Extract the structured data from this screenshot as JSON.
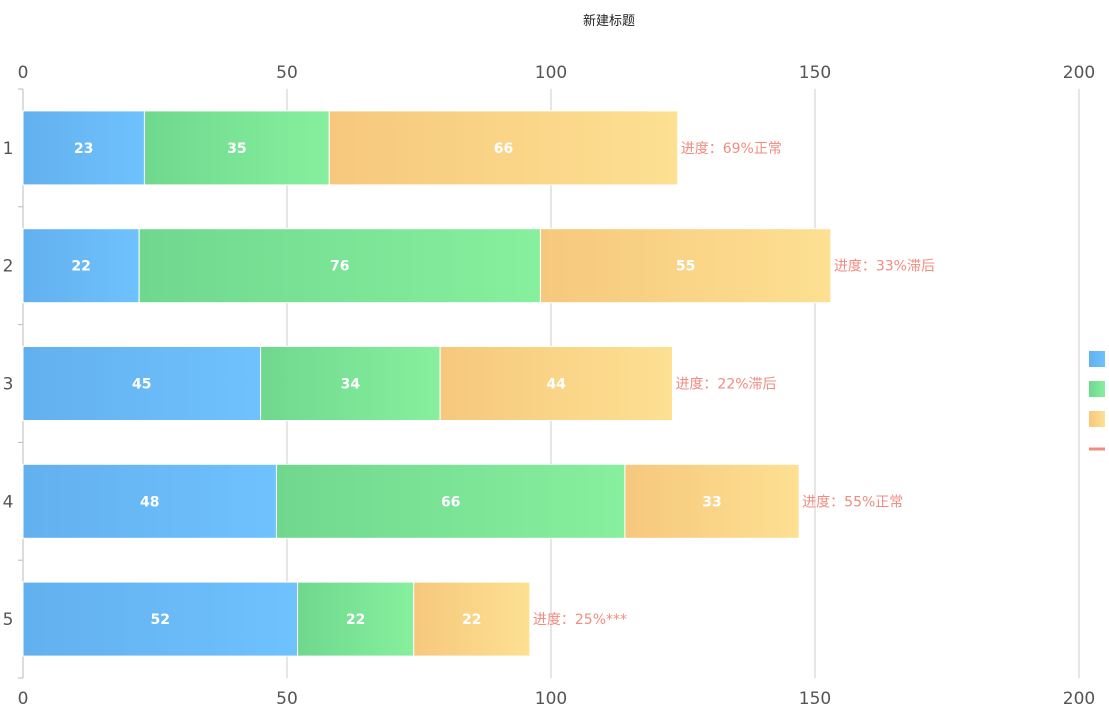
{
  "chart_data": {
    "type": "bar",
    "orientation": "horizontal",
    "stacked": true,
    "title": "新建标题",
    "categories": [
      "1",
      "2",
      "3",
      "4",
      "5"
    ],
    "xlim": [
      0,
      200
    ],
    "x_ticks": [
      0,
      50,
      100,
      150,
      200
    ],
    "series": [
      {
        "values": [
          23,
          22,
          45,
          48,
          52
        ],
        "color_start": "#63b0ee",
        "color_end": "#6ec2fd"
      },
      {
        "values": [
          35,
          76,
          34,
          66,
          22
        ],
        "color_start": "#6fd88e",
        "color_end": "#86f09e"
      },
      {
        "values": [
          66,
          55,
          44,
          33,
          22
        ],
        "color_start": "#f6c87d",
        "color_end": "#fde092"
      }
    ],
    "annotations": [
      "进度：69%正常",
      "进度：33%滞后",
      "进度：22%滞后",
      "进度：55%正常",
      "进度：25%***"
    ],
    "annotation_color": "#f08c80",
    "legend": {
      "position": "right",
      "markers": [
        "bar",
        "bar",
        "bar",
        "line"
      ]
    },
    "grid": true
  }
}
